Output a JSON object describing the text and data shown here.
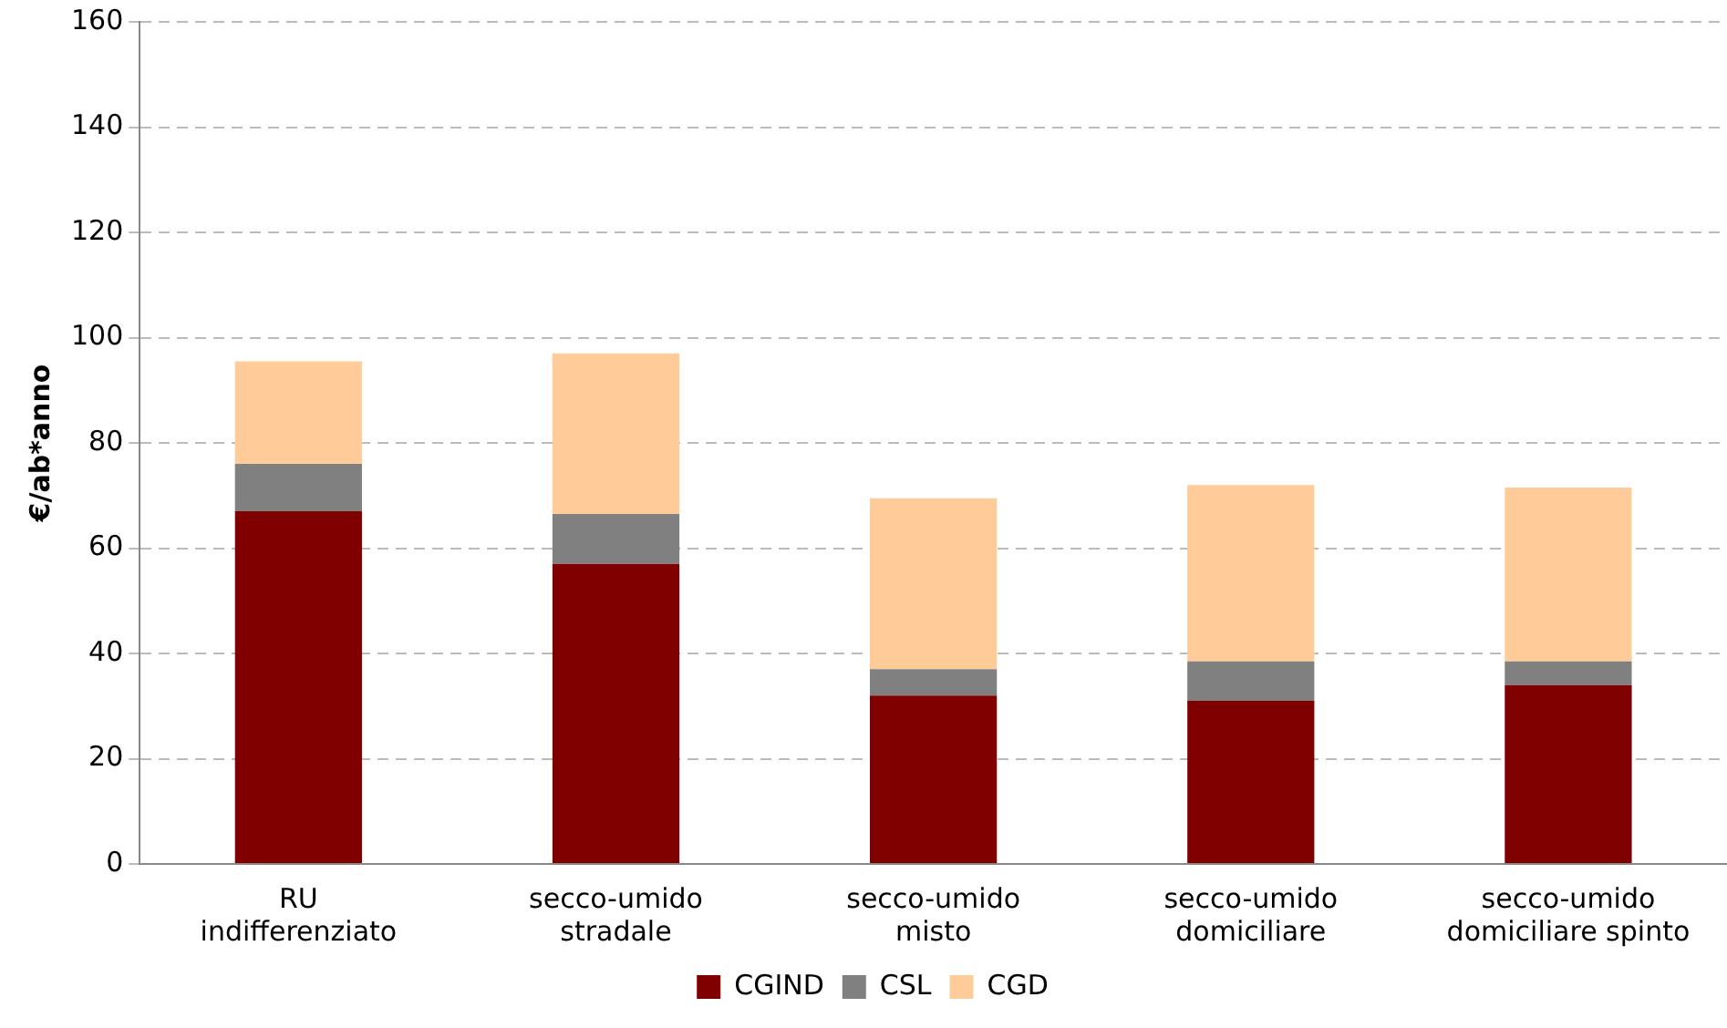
{
  "chart_data": {
    "type": "bar",
    "stacked": true,
    "ylabel": "€/ab*anno",
    "categories": [
      "RU\nindifferenziato",
      "secco-umido\nstradale",
      "secco-umido\nmisto",
      "secco-umido\ndomiciliare",
      "secco-umido\ndomiciliare spinto"
    ],
    "series": [
      {
        "name": "CGIND",
        "color": "#800000",
        "values": [
          67,
          57,
          32,
          31,
          34
        ]
      },
      {
        "name": "CSL",
        "color": "#808080",
        "values": [
          9,
          9.5,
          5,
          7.5,
          4.5
        ]
      },
      {
        "name": "CGD",
        "color": "#ffcc99",
        "values": [
          19.5,
          30.5,
          32.5,
          33.5,
          33
        ]
      }
    ],
    "ylim": [
      0,
      160
    ],
    "yticks": [
      0,
      20,
      40,
      60,
      80,
      100,
      120,
      140,
      160
    ],
    "grid": "y",
    "legend": "bottom"
  }
}
